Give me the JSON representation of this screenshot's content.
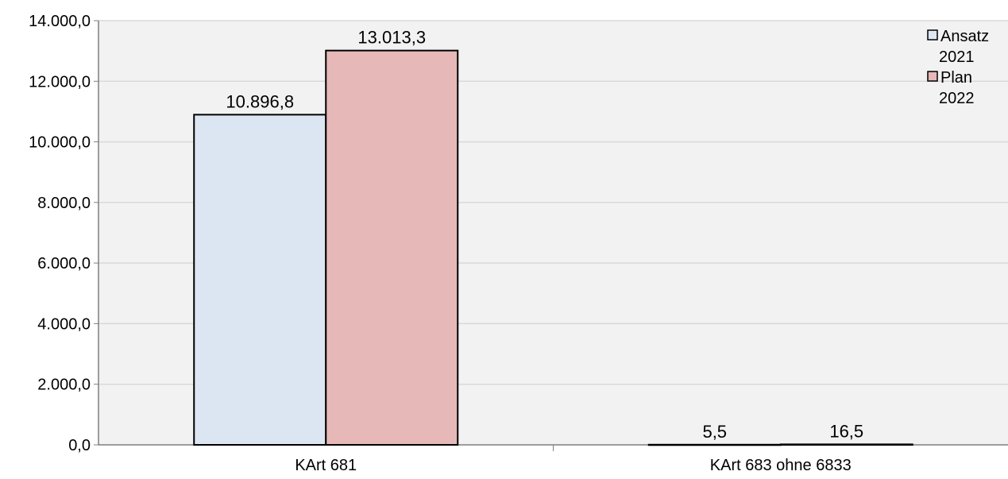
{
  "chart_data": {
    "type": "bar",
    "categories": [
      "KArt 681",
      "KArt 683 ohne 6833"
    ],
    "series": [
      {
        "name": "Ansatz 2021",
        "legend_lines": [
          "Ansatz",
          "2021"
        ],
        "values": [
          10896.8,
          5.5
        ],
        "labels": [
          "10.896,8",
          "5,5"
        ],
        "color": "#dce6f2"
      },
      {
        "name": "Plan 2022",
        "legend_lines": [
          "Plan",
          "2022"
        ],
        "values": [
          13013.3,
          16.5
        ],
        "labels": [
          "13.013,3",
          "16,5"
        ],
        "color": "#e6b8b8"
      }
    ],
    "yticks": [
      0,
      2000,
      4000,
      6000,
      8000,
      10000,
      12000,
      14000
    ],
    "ytick_labels": [
      "0,0",
      "2.000,0",
      "4.000,0",
      "6.000,0",
      "8.000,0",
      "10.000,0",
      "12.000,0",
      "14.000,0"
    ],
    "ylim": [
      0,
      14000
    ],
    "grid": true,
    "legend_position": "top-right",
    "plot_background": "#f2f2f2",
    "title": "",
    "xlabel": "",
    "ylabel": ""
  }
}
